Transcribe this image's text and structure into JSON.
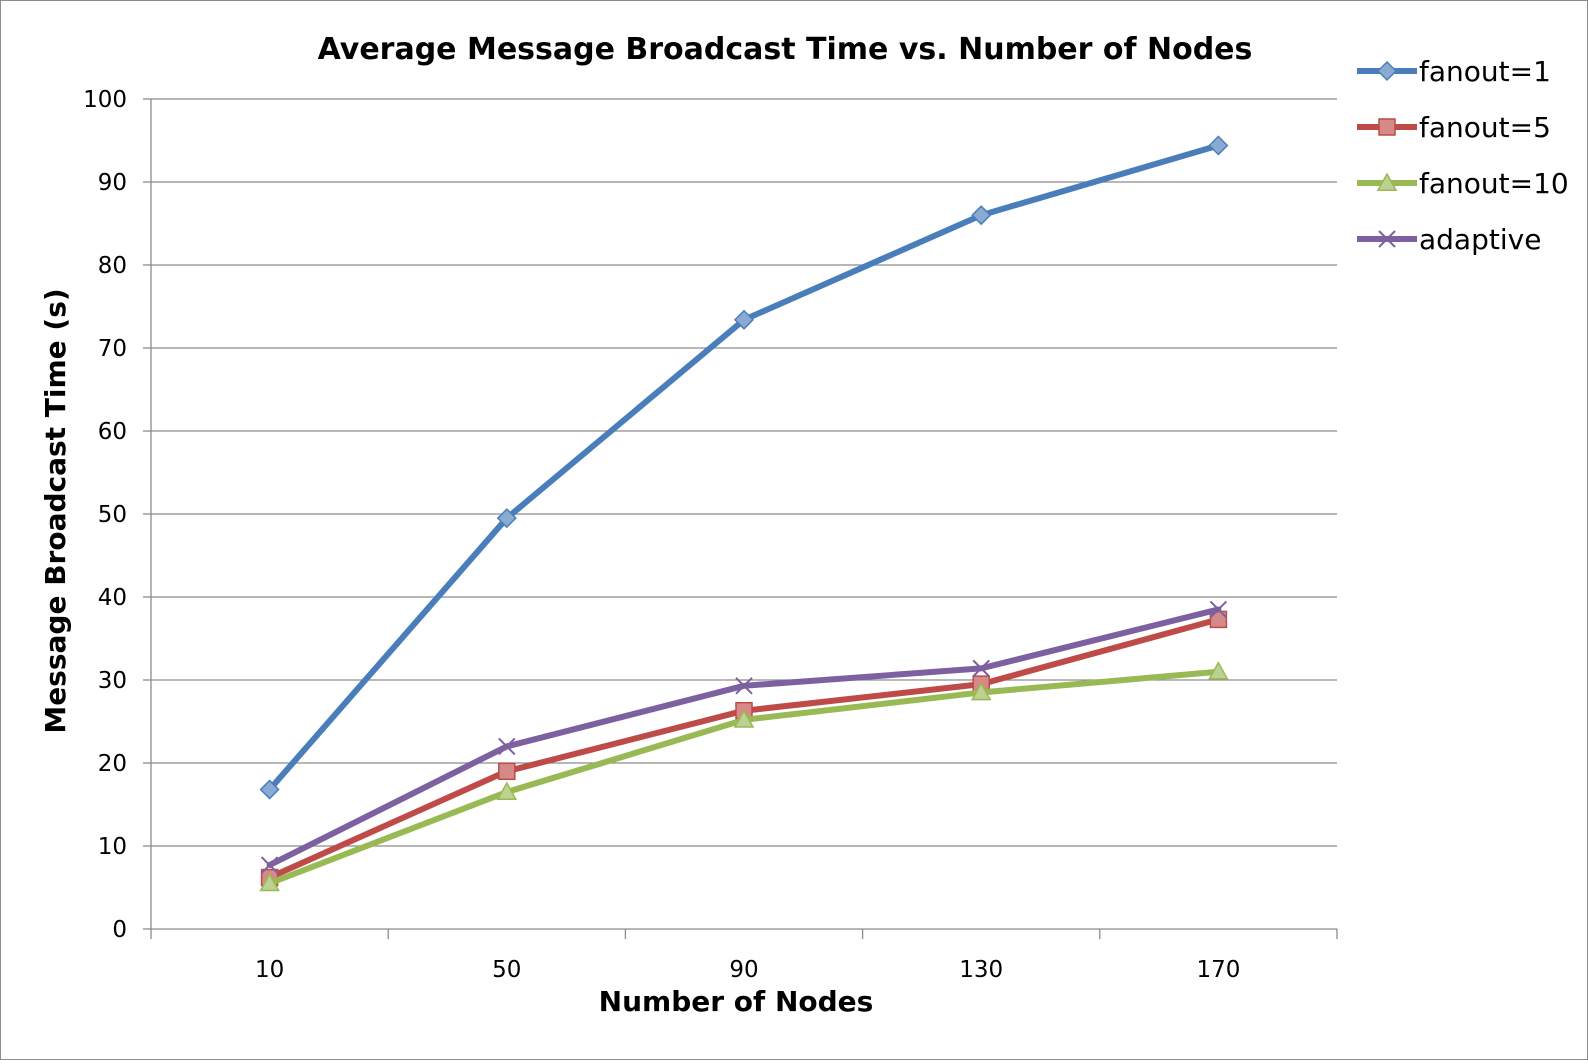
{
  "chart_data": {
    "type": "line",
    "title": "Average Message Broadcast Time vs. Number of Nodes",
    "xlabel": "Number of Nodes",
    "ylabel": "Message Broadcast Time (s)",
    "categories": [
      "10",
      "50",
      "90",
      "130",
      "170"
    ],
    "ylim": [
      0,
      100
    ],
    "yticks": [
      0,
      10,
      20,
      30,
      40,
      50,
      60,
      70,
      80,
      90,
      100
    ],
    "grid": true,
    "legend_position": "right",
    "series": [
      {
        "name": "fanout=1",
        "values": [
          16.8,
          49.5,
          73.4,
          86.0,
          94.4
        ],
        "color": "#4a7ebb",
        "marker": "diamond"
      },
      {
        "name": "fanout=5",
        "values": [
          6.2,
          19.0,
          26.3,
          29.5,
          37.3
        ],
        "color": "#be4b48",
        "marker": "square"
      },
      {
        "name": "fanout=10",
        "values": [
          5.5,
          16.5,
          25.2,
          28.5,
          31.0
        ],
        "color": "#98b954",
        "marker": "triangle"
      },
      {
        "name": "adaptive",
        "values": [
          7.7,
          22.0,
          29.3,
          31.4,
          38.5
        ],
        "color": "#7d60a0",
        "marker": "x"
      }
    ]
  }
}
